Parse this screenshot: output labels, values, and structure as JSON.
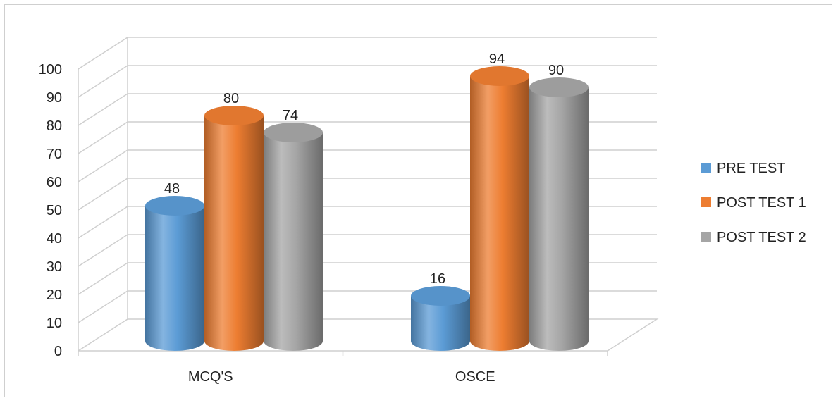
{
  "chart_data": {
    "type": "bar",
    "style": "3d-cylinder",
    "categories": [
      "MCQ'S",
      "OSCE"
    ],
    "series": [
      {
        "name": "PRE TEST",
        "values": [
          48,
          16
        ],
        "color": "#5b9bd5"
      },
      {
        "name": "POST TEST 1",
        "values": [
          80,
          94
        ],
        "color": "#ed7d31"
      },
      {
        "name": "POST TEST 2",
        "values": [
          74,
          90
        ],
        "color": "#a5a5a5"
      }
    ],
    "ylim": [
      0,
      100
    ],
    "yticks": [
      0,
      10,
      20,
      30,
      40,
      50,
      60,
      70,
      80,
      90,
      100
    ],
    "grid": true,
    "legend_position": "right",
    "title": "",
    "xlabel": "",
    "ylabel": ""
  }
}
